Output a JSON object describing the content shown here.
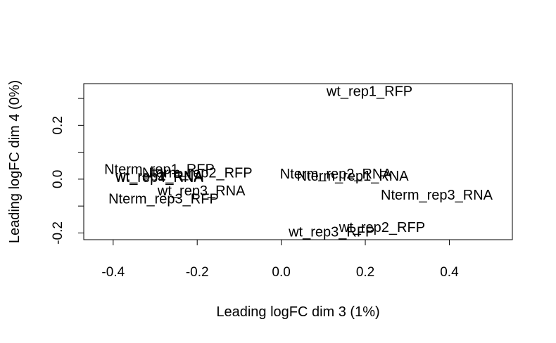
{
  "chart_data": {
    "type": "scatter",
    "title": "",
    "xlabel": "Leading logFC dim 3 (1%)",
    "ylabel": "Leading logFC dim 4 (0%)",
    "xlim": [
      -0.47,
      0.55
    ],
    "ylim": [
      -0.225,
      0.355
    ],
    "xticks": [
      -0.4,
      -0.2,
      0.0,
      0.2,
      0.4
    ],
    "xtick_labels": [
      "-0.4",
      "-0.2",
      "0.0",
      "0.2",
      "0.4"
    ],
    "yticks": [
      -0.2,
      -0.1,
      0.0,
      0.1,
      0.2,
      0.3
    ],
    "ytick_labels": [
      "-0.2",
      "",
      "0.0",
      "",
      "0.2",
      ""
    ],
    "grid": false,
    "legend": "none",
    "points": [
      {
        "label": "wt_rep1_RFP",
        "x": 0.21,
        "y": 0.325
      },
      {
        "label": "Nterm_rep1_RFP",
        "x": -0.29,
        "y": 0.035
      },
      {
        "label": "Nterm_rep2_RFP",
        "x": -0.2,
        "y": 0.022
      },
      {
        "label": "Nterm_rep2_RNA",
        "x": 0.13,
        "y": 0.018
      },
      {
        "label": "Nterm_rep1_RNA",
        "x": 0.17,
        "y": 0.01
      },
      {
        "label": "wt_rep1_RNA",
        "x": -0.29,
        "y": 0.01
      },
      {
        "label": "wt_rep4_RNA",
        "x": -0.29,
        "y": 0.005
      },
      {
        "label": "wt_rep3_RNA",
        "x": -0.19,
        "y": -0.045
      },
      {
        "label": "Nterm_rep3_RFP",
        "x": -0.28,
        "y": -0.075
      },
      {
        "label": "Nterm_rep3_RNA",
        "x": 0.37,
        "y": -0.06
      },
      {
        "label": "wt_rep2_RFP",
        "x": 0.24,
        "y": -0.18
      },
      {
        "label": "wt_rep3_RFP",
        "x": 0.12,
        "y": -0.198
      }
    ]
  }
}
